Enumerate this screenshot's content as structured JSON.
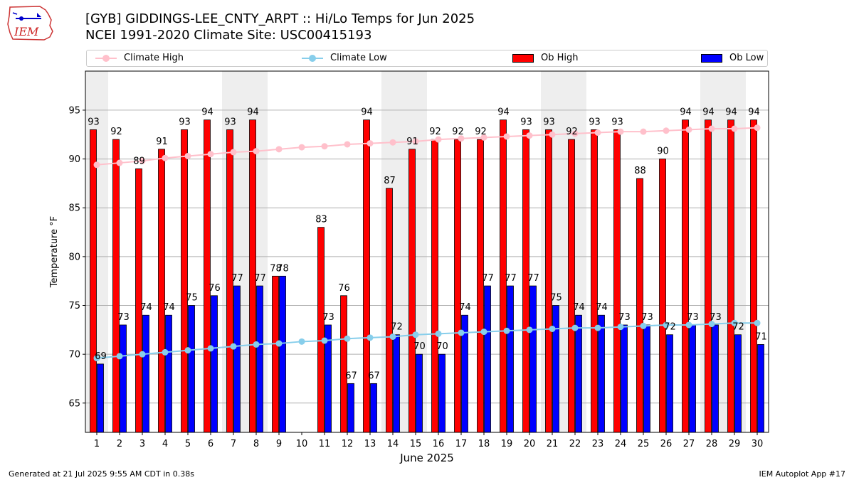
{
  "header": {
    "title_line1": "[GYB] GIDDINGS-LEE_CNTY_ARPT :: Hi/Lo Temps for Jun 2025",
    "title_line2": "NCEI 1991-2020 Climate Site: USC00415193"
  },
  "logo": {
    "text": "IEM"
  },
  "footer": {
    "left": "Generated at 21 Jul 2025 9:55 AM CDT in 0.38s",
    "right": "IEM Autoplot App #17"
  },
  "colors": {
    "ob_high": "#ff0000",
    "ob_low": "#0000ff",
    "climate_high": "#ffc0cb",
    "climate_low": "#87ceeb",
    "weekend_shade": "#eeeeee"
  },
  "chart_data": {
    "type": "bar",
    "xlabel": "June 2025",
    "ylabel": "Temperature °F",
    "ylim": [
      62,
      99
    ],
    "yticks": [
      65,
      70,
      75,
      80,
      85,
      90,
      95
    ],
    "grid": true,
    "legend_placement": "top",
    "categories": [
      "1",
      "2",
      "3",
      "4",
      "5",
      "6",
      "7",
      "8",
      "9",
      "10",
      "11",
      "12",
      "13",
      "14",
      "15",
      "16",
      "17",
      "18",
      "19",
      "20",
      "21",
      "22",
      "23",
      "24",
      "25",
      "26",
      "27",
      "28",
      "29",
      "30"
    ],
    "shaded_days": [
      1,
      7,
      8,
      14,
      15,
      21,
      22,
      28,
      29
    ],
    "series": [
      {
        "name": "Ob High",
        "kind": "bar",
        "values": [
          93,
          92,
          89,
          91,
          93,
          94,
          93,
          94,
          78,
          null,
          83,
          76,
          94,
          87,
          91,
          92,
          92,
          92,
          94,
          93,
          93,
          92,
          93,
          93,
          88,
          90,
          94,
          94,
          94,
          94
        ]
      },
      {
        "name": "Ob Low",
        "kind": "bar",
        "values": [
          69,
          73,
          74,
          74,
          75,
          76,
          77,
          77,
          78,
          null,
          73,
          67,
          67,
          72,
          70,
          70,
          74,
          77,
          77,
          77,
          75,
          74,
          74,
          73,
          73,
          72,
          73,
          73,
          72,
          71
        ]
      },
      {
        "name": "Climate High",
        "kind": "line",
        "values": [
          89.4,
          89.6,
          89.8,
          90.1,
          90.3,
          90.5,
          90.7,
          90.8,
          91.0,
          91.2,
          91.3,
          91.5,
          91.6,
          91.7,
          91.8,
          92.0,
          92.1,
          92.2,
          92.3,
          92.4,
          92.5,
          92.6,
          92.7,
          92.8,
          92.8,
          92.9,
          93.0,
          93.1,
          93.1,
          93.2
        ]
      },
      {
        "name": "Climate Low",
        "kind": "line",
        "values": [
          69.6,
          69.8,
          70.0,
          70.2,
          70.4,
          70.6,
          70.8,
          71.0,
          71.1,
          71.3,
          71.4,
          71.6,
          71.7,
          71.8,
          72.0,
          72.1,
          72.2,
          72.3,
          72.4,
          72.5,
          72.6,
          72.7,
          72.7,
          72.8,
          72.9,
          73.0,
          73.0,
          73.1,
          73.2,
          73.2
        ]
      }
    ],
    "legend": [
      "Climate High",
      "Climate Low",
      "Ob High",
      "Ob Low"
    ]
  }
}
